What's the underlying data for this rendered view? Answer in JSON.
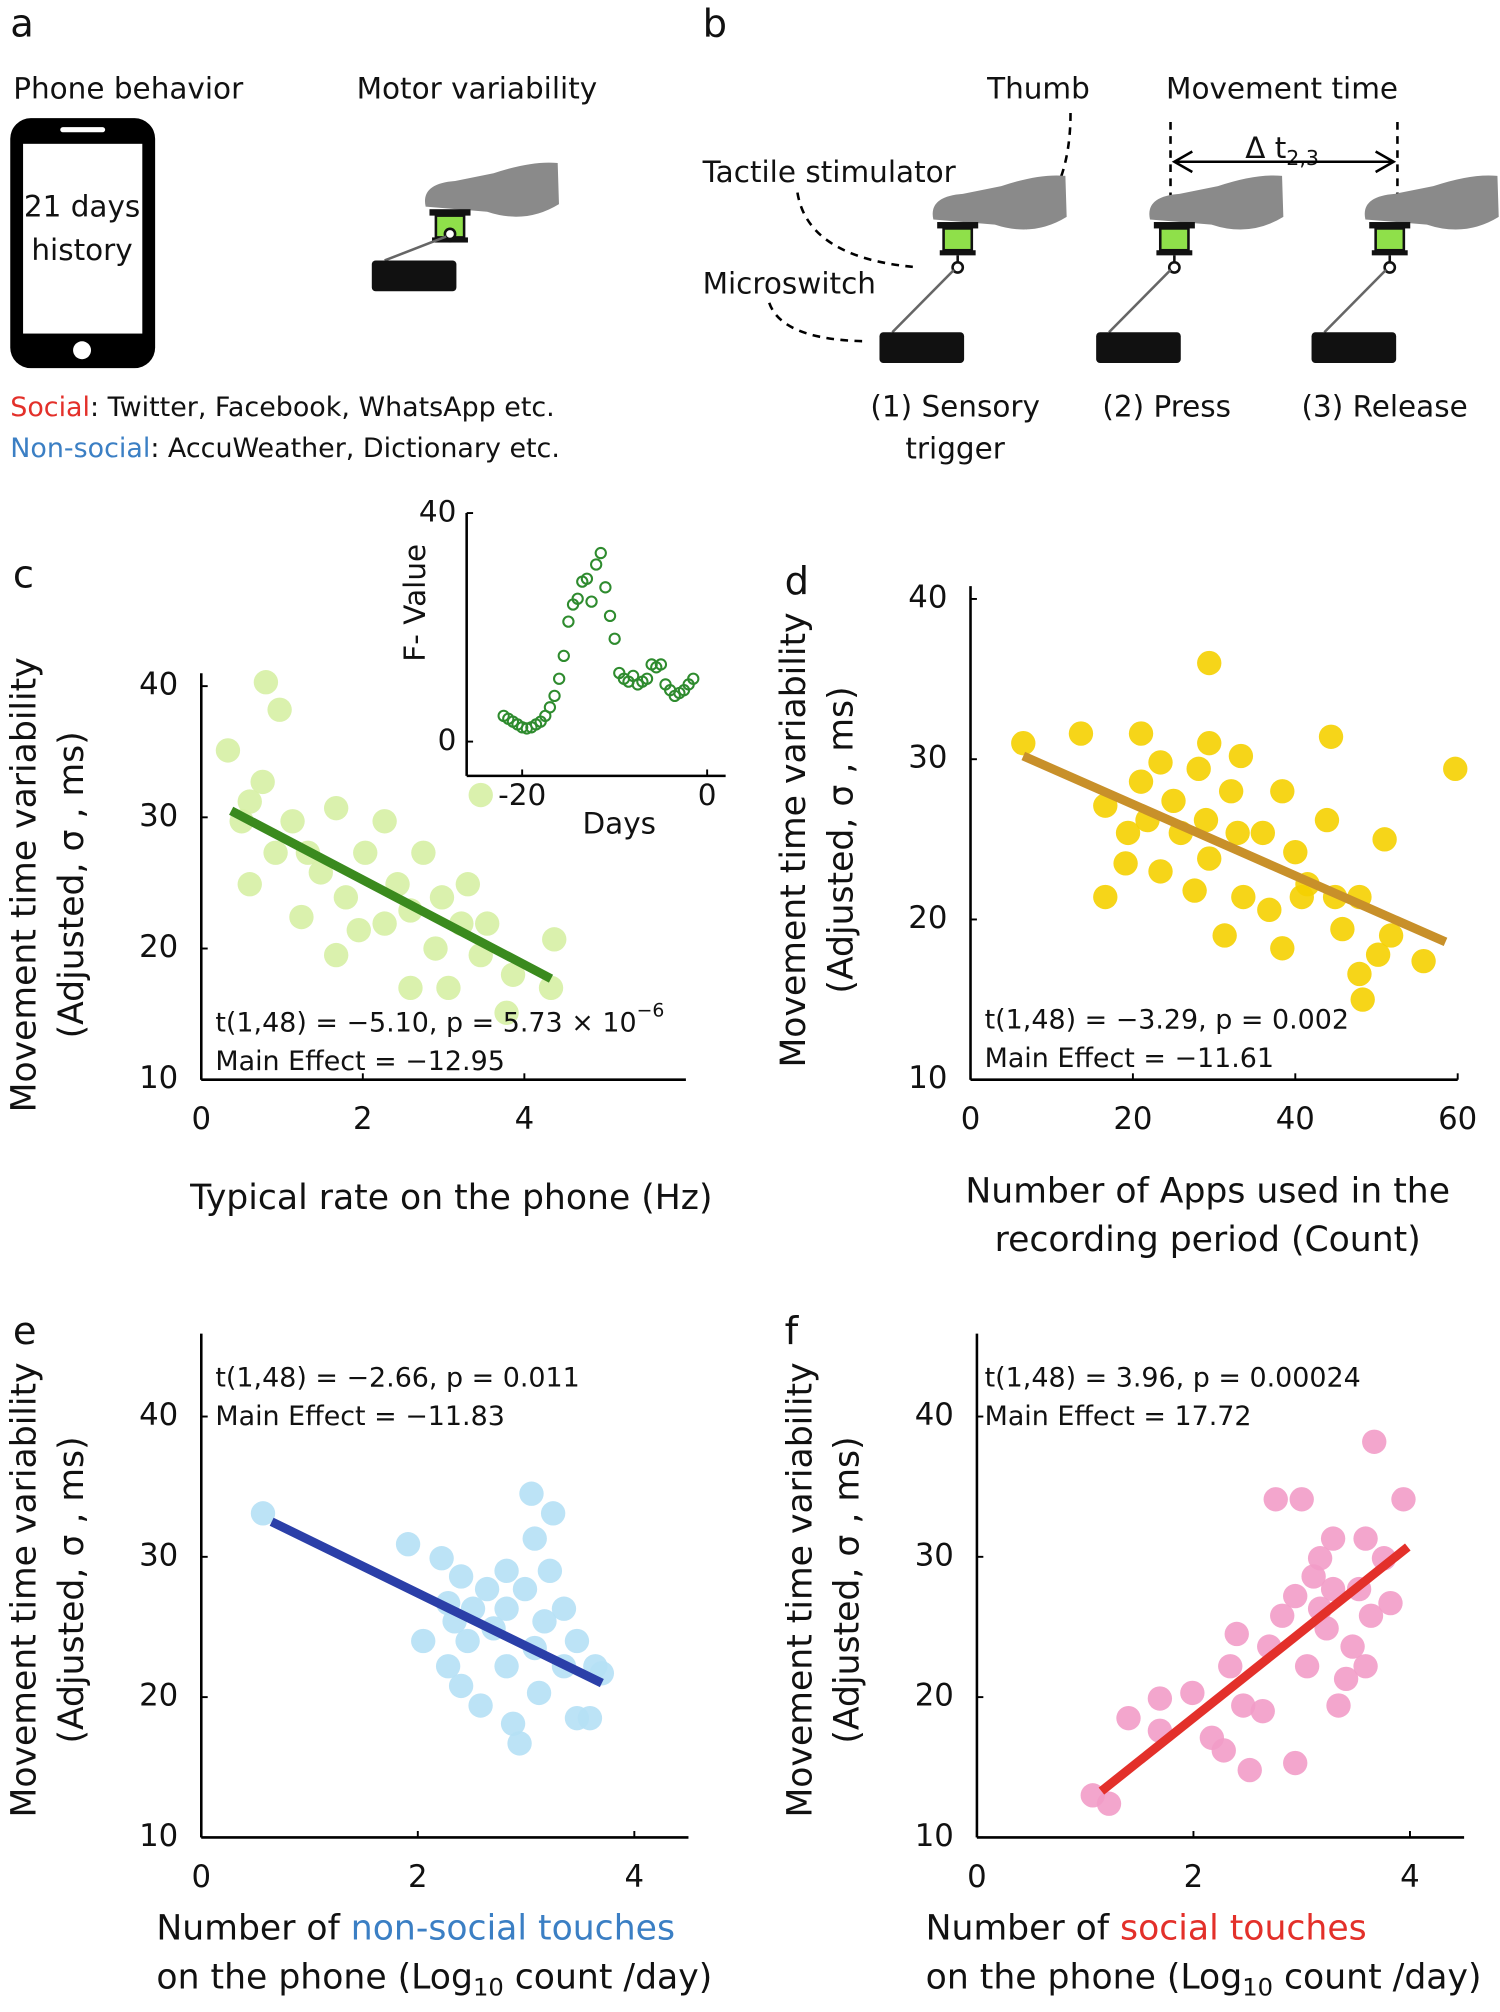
{
  "diagram": {
    "panel_a": {
      "label": "a",
      "phone_title": "Phone behavior",
      "phone_text": [
        "21 days",
        "history"
      ],
      "motor_title": "Motor variability",
      "legend": [
        {
          "name": "Social",
          "color": "#e3302a",
          "text": ": Twitter, Facebook, WhatsApp etc."
        },
        {
          "name": "Non-social",
          "color": "#3b7fc4",
          "text": ": AccuWeather, Dictionary etc."
        }
      ]
    },
    "panel_b": {
      "label": "b",
      "thumb": "Thumb",
      "movement_time": "Movement time",
      "delta": "Δ t",
      "delta_sub": "2,3",
      "tactile": "Tactile stimulator",
      "microswitch": "Microswitch",
      "steps": [
        [
          "(1) Sensory",
          "trigger"
        ],
        [
          "(2) Press"
        ],
        [
          "(3) Release"
        ]
      ]
    }
  },
  "chart_data": [
    {
      "type": "scatter",
      "panel": "c",
      "marker": "filled",
      "color": "#d6f0a4",
      "ylabel": [
        "Movement time variability",
        "(Adjusted, σ , ms)"
      ],
      "xlabel": [
        [
          {
            "text": "Typical rate on the phone (Hz)"
          }
        ]
      ],
      "annotations": [
        [
          {
            "text": "t(1,48) = −5.10, p = 5.73 × 10"
          },
          {
            "text": "−6",
            "sup": true
          }
        ],
        [
          {
            "text": "Main Effect = −12.95"
          }
        ]
      ],
      "x": [
        0.33,
        0.8,
        0.97,
        0.76,
        0.6,
        0.5,
        1.13,
        0.92,
        0.6,
        1.32,
        1.67,
        1.48,
        1.79,
        1.67,
        2.27,
        2.03,
        2.43,
        2.75,
        2.59,
        2.98,
        2.27,
        2.9,
        3.3,
        3.54,
        2.59,
        3.06,
        3.46,
        3.86,
        4.37,
        4.33,
        3.78,
        3.46,
        1.24,
        1.95,
        3.22
      ],
      "y": [
        35.1,
        40.3,
        38.2,
        32.7,
        31.2,
        29.7,
        29.7,
        27.3,
        24.9,
        27.3,
        30.7,
        25.8,
        23.9,
        19.5,
        29.7,
        27.3,
        24.9,
        27.3,
        22.9,
        23.9,
        21.9,
        20.0,
        24.9,
        21.9,
        17.0,
        17.0,
        19.5,
        18.0,
        20.7,
        17.0,
        15.1,
        31.7,
        22.4,
        21.4,
        21.9
      ],
      "fit": {
        "x": [
          0.37,
          4.33
        ],
        "y": [
          30.5,
          17.7
        ],
        "color": "#3a8a1e"
      },
      "xlim": [
        0,
        6
      ],
      "ylim": [
        10,
        40
      ],
      "xticks": [
        0,
        2,
        4
      ],
      "yticks": [
        10,
        20,
        30,
        40
      ]
    },
    {
      "type": "scatter",
      "marker": "open",
      "color": "#2e8b2e",
      "ylabel": [
        "F- Value"
      ],
      "xlabel": [
        [
          {
            "text": "Days"
          }
        ]
      ],
      "x": [
        -22,
        -21.5,
        -21,
        -20.5,
        -20,
        -19.5,
        -19,
        -18.5,
        -18,
        -17.5,
        -17,
        -16.5,
        -16,
        -15.5,
        -15,
        -14.5,
        -14,
        -13.5,
        -13,
        -12.5,
        -12,
        -11.5,
        -11,
        -10.5,
        -10,
        -9.5,
        -9,
        -8.5,
        -8,
        -7.5,
        -7,
        -6.5,
        -6,
        -5.5,
        -5,
        -4.5,
        -4,
        -3.5,
        -3,
        -2.5,
        -2,
        -1.5
      ],
      "y": [
        4.5,
        4,
        3.5,
        3,
        2.5,
        2.3,
        2.5,
        3,
        3.5,
        4.5,
        6,
        8,
        11,
        15,
        21,
        24,
        25,
        28,
        28.5,
        24.5,
        31,
        33,
        27,
        22,
        18,
        12,
        11,
        10.5,
        11.5,
        10,
        10.5,
        11,
        13.5,
        13,
        13.5,
        10,
        9,
        8,
        8.5,
        9,
        10,
        11
      ],
      "xlim": [
        -26,
        2
      ],
      "ylim": [
        -6,
        40
      ],
      "xticks": [
        -20,
        0
      ],
      "yticks": [
        0,
        40
      ]
    },
    {
      "type": "scatter",
      "panel": "d",
      "marker": "filled",
      "color": "#f5d000",
      "ylabel": [
        "Movement time variability",
        "(Adjusted, σ , ms)"
      ],
      "xlabel": [
        [
          {
            "text": "Number of Apps used in the"
          }
        ],
        [
          {
            "text": "recording period (Count)"
          }
        ]
      ],
      "annotations": [
        [
          {
            "text": "t(1,48) = −3.29, p = 0.002"
          }
        ],
        [
          {
            "text": "Main Effect = −11.61"
          }
        ]
      ],
      "x": [
        6.5,
        13.6,
        16.6,
        16.6,
        21,
        21,
        21.8,
        19.4,
        23.4,
        25,
        25.9,
        28.1,
        29,
        29.4,
        27.6,
        29.4,
        32.1,
        29.4,
        32.9,
        33.3,
        33.6,
        31.3,
        36,
        36.8,
        38.4,
        38.4,
        40,
        40.8,
        41.5,
        43.9,
        44.4,
        44.9,
        45.8,
        47.9,
        47.9,
        48.3,
        51,
        50.2,
        51.8,
        55.8,
        59.7,
        23.4,
        19.1
      ],
      "y": [
        31.0,
        31.6,
        27.1,
        21.4,
        31.6,
        28.6,
        26.2,
        25.4,
        29.8,
        27.4,
        25.4,
        29.4,
        26.2,
        23.8,
        21.8,
        31,
        28,
        36,
        25.4,
        30.2,
        21.4,
        19,
        25.4,
        20.6,
        18.2,
        28,
        24.2,
        21.4,
        22.2,
        26.2,
        31.4,
        21.4,
        19.4,
        21.4,
        16.6,
        15,
        25,
        17.8,
        19,
        17.4,
        29.4,
        23,
        23.5
      ],
      "fit": {
        "x": [
          6.5,
          58.5
        ],
        "y": [
          30.2,
          18.6
        ],
        "color": "#c8902a"
      },
      "xlim": [
        0,
        60
      ],
      "ylim": [
        10,
        40
      ],
      "xticks": [
        0,
        20,
        40,
        60
      ],
      "yticks": [
        10,
        20,
        30,
        40
      ]
    },
    {
      "type": "scatter",
      "panel": "e",
      "marker": "filled",
      "color": "#b5e0f5",
      "ylabel": [
        "Movement time variability",
        "(Adjusted, σ , ms)"
      ],
      "xlabel": [
        [
          {
            "text": "Number of "
          },
          {
            "text": "non-social touches",
            "color": "#3b7fc4"
          }
        ],
        [
          {
            "text": "on the phone (Log"
          },
          {
            "text": "10",
            "sub": true
          },
          {
            "text": " count /day)"
          }
        ]
      ],
      "annotations": [
        [
          {
            "text": "t(1,48) = −2.66, p = 0.011"
          }
        ],
        [
          {
            "text": "Main Effect = −11.83"
          }
        ]
      ],
      "x": [
        0.57,
        1.91,
        2.22,
        2.4,
        2.28,
        2.51,
        2.64,
        2.82,
        2.99,
        3.08,
        3.05,
        3.25,
        3.17,
        3.35,
        2.28,
        2.46,
        2.7,
        2.4,
        2.58,
        2.82,
        2.88,
        2.94,
        3.12,
        3.08,
        3.35,
        3.47,
        3.47,
        3.64,
        3.7,
        3.59,
        2.05,
        2.34,
        2.82,
        3.22
      ],
      "y": [
        33.1,
        30.9,
        29.9,
        28.6,
        26.7,
        26.3,
        27.7,
        29,
        27.7,
        31.3,
        34.5,
        33.1,
        25.4,
        26.3,
        22.2,
        24,
        24.9,
        20.8,
        19.4,
        22.2,
        18.1,
        16.7,
        20.3,
        23.5,
        22.2,
        24,
        18.5,
        22.2,
        21.7,
        18.5,
        24,
        25.4,
        26.3,
        29
      ],
      "fit": {
        "x": [
          0.65,
          3.7
        ],
        "y": [
          32.5,
          21
        ],
        "color": "#2b3fa8"
      },
      "xlim": [
        0,
        4.5
      ],
      "ylim": [
        10,
        45
      ],
      "xticks": [
        0,
        2,
        4
      ],
      "yticks": [
        10,
        20,
        30,
        40
      ]
    },
    {
      "type": "scatter",
      "panel": "f",
      "marker": "filled",
      "color": "#f29cc8",
      "ylabel": [
        "Movement time variability",
        "(Adjusted, σ , ms)"
      ],
      "xlabel": [
        [
          {
            "text": "Number of "
          },
          {
            "text": "social touches",
            "color": "#e3302a"
          }
        ],
        [
          {
            "text": "on the phone (Log"
          },
          {
            "text": "10",
            "sub": true
          },
          {
            "text": " count /day)"
          }
        ]
      ],
      "annotations": [
        [
          {
            "text": "t(1,48) = 3.96, p = 0.00024"
          }
        ],
        [
          {
            "text": "Main Effect = 17.72"
          }
        ]
      ],
      "x": [
        1.07,
        1.22,
        1.4,
        1.69,
        1.69,
        1.99,
        2.17,
        2.28,
        2.34,
        2.46,
        2.64,
        2.4,
        2.7,
        2.76,
        3.0,
        2.82,
        2.94,
        3.05,
        3.11,
        3.17,
        3.23,
        3.17,
        3.29,
        3.34,
        3.41,
        3.47,
        3.53,
        3.59,
        3.67,
        3.76,
        3.59,
        3.64,
        3.94,
        3.82,
        2.94,
        2.52,
        3.29
      ],
      "y": [
        13,
        12.4,
        18.5,
        19.9,
        17.6,
        20.3,
        17.1,
        16.2,
        22.2,
        19.4,
        19,
        24.5,
        23.6,
        34.1,
        34.1,
        25.8,
        27.2,
        22.2,
        28.6,
        26.3,
        24.9,
        29.9,
        31.3,
        19.4,
        21.3,
        23.6,
        27.7,
        31.3,
        38.2,
        29.9,
        22.2,
        25.8,
        34.1,
        26.7,
        15.3,
        14.8,
        27.7
      ],
      "fit": {
        "x": [
          1.15,
          3.98
        ],
        "y": [
          13.3,
          30.7
        ],
        "color": "#e3302a"
      },
      "xlim": [
        0,
        4.5
      ],
      "ylim": [
        10,
        45
      ],
      "xticks": [
        0,
        2,
        4
      ],
      "yticks": [
        10,
        20,
        30,
        40
      ]
    }
  ]
}
